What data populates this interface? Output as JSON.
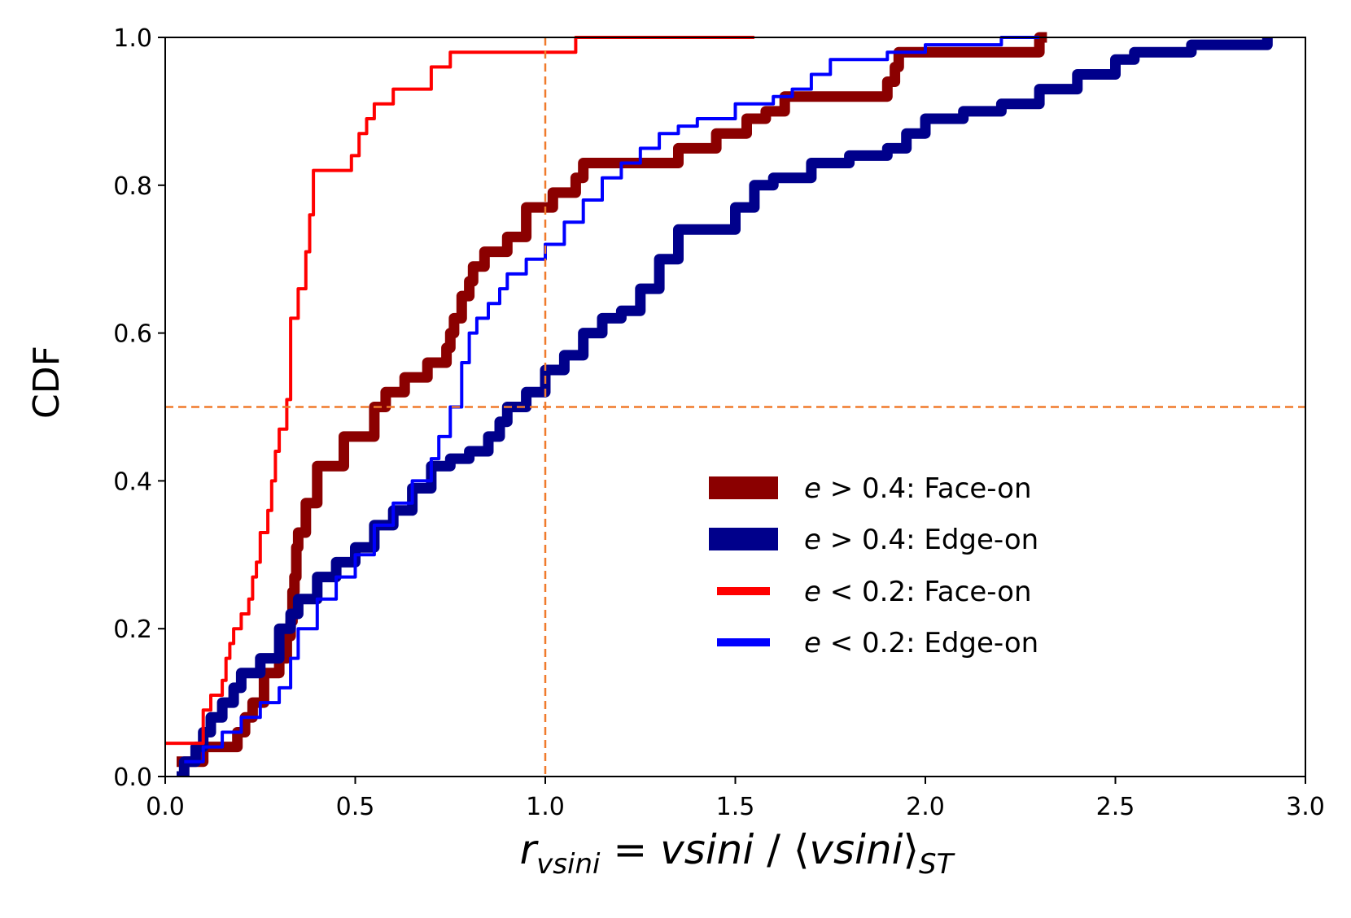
{
  "chart_data": {
    "type": "line",
    "step": true,
    "title": "",
    "xlabel": "r_vsini = vsini / ⟨vsini⟩_ST",
    "ylabel": "CDF",
    "xlabel_parts": {
      "r": "r",
      "r_sub": "vsini",
      "equals": " = ",
      "num": "vsini",
      "slash": " / ",
      "langle": "⟨",
      "den": "vsini",
      "rangle": "⟩",
      "den_sub": "ST"
    },
    "xlim": [
      0.0,
      3.0
    ],
    "ylim": [
      0.0,
      1.0
    ],
    "xticks": [
      0.0,
      0.5,
      1.0,
      1.5,
      2.0,
      2.5,
      3.0
    ],
    "xtick_labels": [
      "0.0",
      "0.5",
      "1.0",
      "1.5",
      "2.0",
      "2.5",
      "3.0"
    ],
    "yticks": [
      0.0,
      0.2,
      0.4,
      0.6,
      0.8,
      1.0
    ],
    "ytick_labels": [
      "0.0",
      "0.2",
      "0.4",
      "0.6",
      "0.8",
      "1.0"
    ],
    "reference_lines": [
      {
        "orientation": "vertical",
        "value": 1.0,
        "color": "#f07a2c",
        "style": "dashed"
      },
      {
        "orientation": "horizontal",
        "value": 0.5,
        "color": "#f07a2c",
        "style": "dashed"
      }
    ],
    "legend_position": "center-right",
    "series": [
      {
        "name": "e > 0.4: Face-on",
        "legend_var": "e",
        "legend_op": " > ",
        "legend_rest": "0.4: Face-on",
        "color": "#8b0000",
        "weight": "thick",
        "x": [
          0.03,
          0.05,
          0.1,
          0.19,
          0.21,
          0.23,
          0.26,
          0.3,
          0.32,
          0.33,
          0.335,
          0.34,
          0.345,
          0.35,
          0.37,
          0.4,
          0.47,
          0.55,
          0.58,
          0.63,
          0.69,
          0.74,
          0.75,
          0.76,
          0.78,
          0.8,
          0.81,
          0.84,
          0.9,
          0.95,
          1.02,
          1.08,
          1.1,
          1.15,
          1.35,
          1.45,
          1.53,
          1.58,
          1.63,
          1.75,
          1.9,
          1.92,
          1.93,
          2.3,
          2.32
        ],
        "y": [
          0.02,
          0.02,
          0.04,
          0.06,
          0.08,
          0.1,
          0.14,
          0.16,
          0.19,
          0.21,
          0.25,
          0.27,
          0.31,
          0.33,
          0.37,
          0.42,
          0.46,
          0.5,
          0.52,
          0.54,
          0.56,
          0.58,
          0.6,
          0.62,
          0.65,
          0.67,
          0.69,
          0.71,
          0.73,
          0.77,
          0.79,
          0.81,
          0.83,
          0.83,
          0.85,
          0.87,
          0.89,
          0.9,
          0.92,
          0.92,
          0.94,
          0.96,
          0.98,
          1.0,
          1.0
        ]
      },
      {
        "name": "e > 0.4: Edge-on",
        "legend_var": "e",
        "legend_op": " > ",
        "legend_rest": "0.4: Edge-on",
        "color": "#00008b",
        "weight": "thick",
        "x": [
          0.03,
          0.05,
          0.08,
          0.1,
          0.12,
          0.15,
          0.18,
          0.2,
          0.25,
          0.3,
          0.33,
          0.35,
          0.4,
          0.45,
          0.5,
          0.55,
          0.6,
          0.65,
          0.7,
          0.75,
          0.8,
          0.85,
          0.88,
          0.9,
          0.95,
          1.0,
          1.05,
          1.1,
          1.15,
          1.2,
          1.25,
          1.3,
          1.35,
          1.45,
          1.5,
          1.55,
          1.6,
          1.7,
          1.8,
          1.9,
          1.95,
          2.0,
          2.1,
          2.2,
          2.3,
          2.4,
          2.5,
          2.55,
          2.7,
          2.9
        ],
        "y": [
          0.0,
          0.02,
          0.04,
          0.06,
          0.08,
          0.1,
          0.12,
          0.14,
          0.16,
          0.2,
          0.22,
          0.24,
          0.27,
          0.29,
          0.31,
          0.34,
          0.36,
          0.39,
          0.42,
          0.43,
          0.44,
          0.46,
          0.48,
          0.5,
          0.52,
          0.55,
          0.57,
          0.6,
          0.62,
          0.63,
          0.66,
          0.7,
          0.74,
          0.74,
          0.77,
          0.8,
          0.81,
          0.83,
          0.84,
          0.85,
          0.87,
          0.89,
          0.9,
          0.91,
          0.93,
          0.95,
          0.97,
          0.98,
          0.99,
          1.0
        ]
      },
      {
        "name": "e < 0.2: Face-on",
        "legend_var": "e",
        "legend_op": " < ",
        "legend_rest": "0.2: Face-on",
        "color": "#ff0000",
        "weight": "thin",
        "x": [
          0.0,
          0.1,
          0.12,
          0.15,
          0.16,
          0.17,
          0.18,
          0.2,
          0.22,
          0.23,
          0.24,
          0.25,
          0.27,
          0.28,
          0.29,
          0.3,
          0.32,
          0.33,
          0.35,
          0.37,
          0.38,
          0.39,
          0.49,
          0.51,
          0.53,
          0.55,
          0.6,
          0.64,
          0.7,
          0.75,
          0.78,
          0.92,
          1.08,
          1.55
        ],
        "y": [
          0.045,
          0.09,
          0.11,
          0.13,
          0.16,
          0.18,
          0.2,
          0.22,
          0.24,
          0.27,
          0.29,
          0.33,
          0.36,
          0.4,
          0.44,
          0.47,
          0.51,
          0.62,
          0.66,
          0.71,
          0.76,
          0.82,
          0.84,
          0.87,
          0.89,
          0.91,
          0.93,
          0.93,
          0.96,
          0.98,
          0.98,
          0.98,
          1.0,
          1.0
        ]
      },
      {
        "name": "e < 0.2: Edge-on",
        "legend_var": "e",
        "legend_op": " < ",
        "legend_rest": "0.2: Edge-on",
        "color": "#0000ff",
        "weight": "thin",
        "x": [
          0.05,
          0.1,
          0.15,
          0.2,
          0.25,
          0.3,
          0.33,
          0.35,
          0.4,
          0.45,
          0.5,
          0.55,
          0.6,
          0.65,
          0.7,
          0.72,
          0.75,
          0.78,
          0.8,
          0.82,
          0.85,
          0.88,
          0.9,
          0.95,
          1.0,
          1.05,
          1.1,
          1.15,
          1.2,
          1.25,
          1.3,
          1.35,
          1.4,
          1.5,
          1.6,
          1.65,
          1.7,
          1.75,
          1.9,
          2.0,
          2.1,
          2.2,
          2.3
        ],
        "y": [
          0.02,
          0.04,
          0.06,
          0.08,
          0.1,
          0.12,
          0.16,
          0.2,
          0.24,
          0.27,
          0.3,
          0.34,
          0.37,
          0.4,
          0.43,
          0.46,
          0.5,
          0.56,
          0.6,
          0.62,
          0.64,
          0.66,
          0.68,
          0.7,
          0.72,
          0.75,
          0.78,
          0.81,
          0.83,
          0.85,
          0.87,
          0.88,
          0.89,
          0.91,
          0.92,
          0.93,
          0.95,
          0.97,
          0.98,
          0.99,
          0.99,
          1.0,
          1.0
        ]
      }
    ]
  }
}
